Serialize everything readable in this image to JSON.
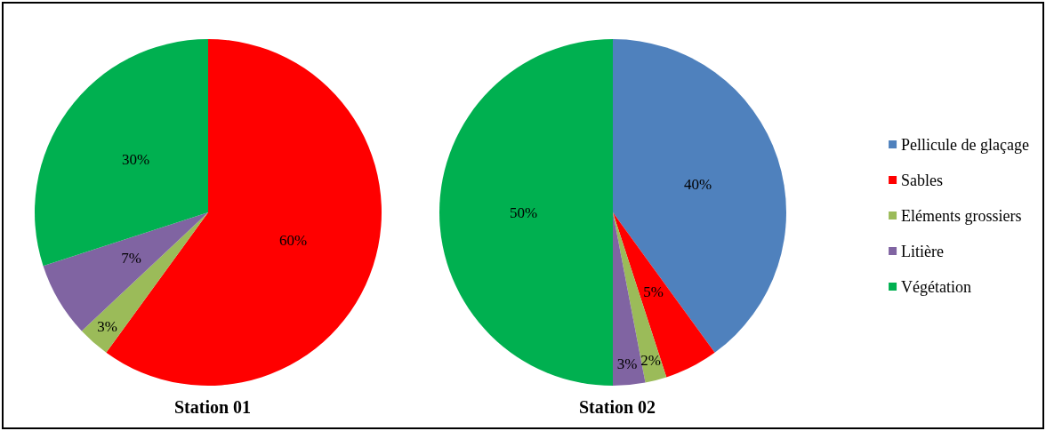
{
  "chart_data": [
    {
      "type": "pie",
      "title": "Station 01",
      "categories": [
        null,
        null,
        null,
        null
      ],
      "values": [
        60,
        3,
        7,
        30
      ],
      "colors": [
        "#ff0000",
        "#9bbb59",
        "#8064a2",
        "#00b050"
      ],
      "value_labels": [
        "60%",
        "3%",
        "7%",
        "30%"
      ],
      "legend": false
    },
    {
      "type": "pie",
      "title": "Station 02",
      "categories": [
        "Pellicule de glaçage",
        "Sables",
        "Eléments grossiers",
        "Litière",
        "Végétation"
      ],
      "values": [
        40,
        5,
        2,
        3,
        50
      ],
      "colors": [
        "#4f81bd",
        "#ff0000",
        "#9bbb59",
        "#8064a2",
        "#00b050"
      ],
      "value_labels": [
        "40%",
        "5%",
        "2%",
        "3%",
        "50%"
      ],
      "legend": "right"
    }
  ]
}
